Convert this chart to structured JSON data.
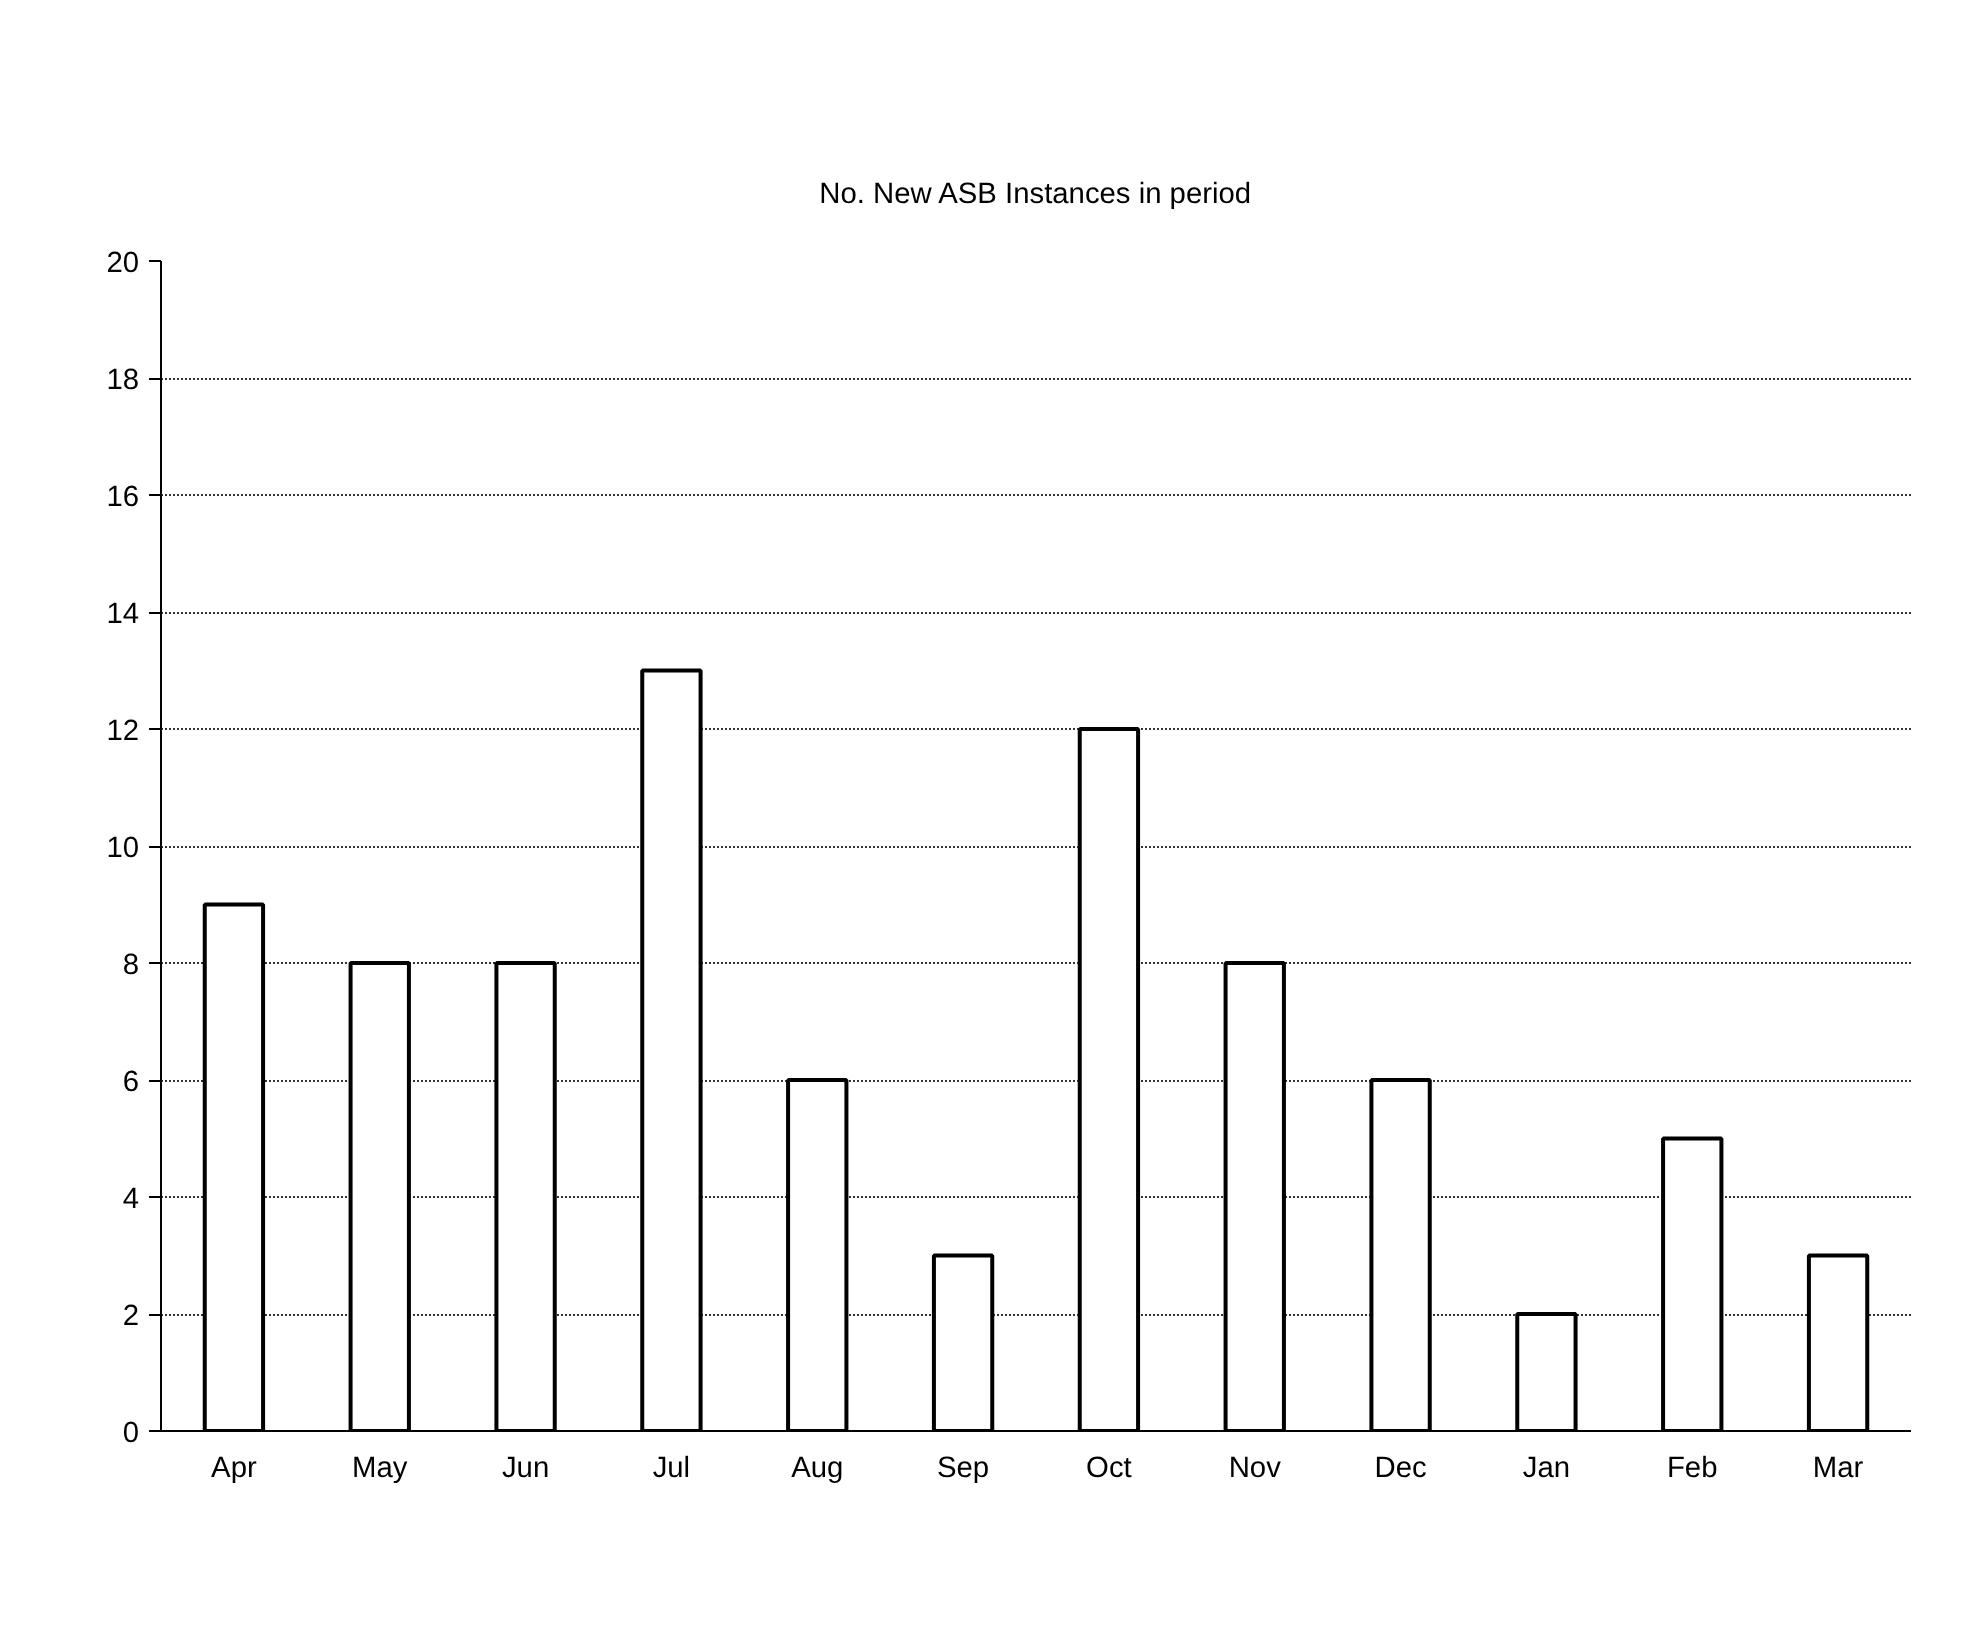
{
  "chart_data": {
    "type": "bar",
    "title": "No. New ASB Instances in period",
    "categories": [
      "Apr",
      "May",
      "Jun",
      "Jul",
      "Aug",
      "Sep",
      "Oct",
      "Nov",
      "Dec",
      "Jan",
      "Feb",
      "Mar"
    ],
    "values": [
      9,
      8,
      8,
      13,
      6,
      3,
      12,
      8,
      6,
      2,
      5,
      3
    ],
    "color": "#ffffff",
    "ylim": [
      0,
      20
    ],
    "yticks": [
      0,
      2,
      4,
      6,
      8,
      10,
      12,
      14,
      16,
      18,
      20
    ],
    "grid": "y"
  }
}
